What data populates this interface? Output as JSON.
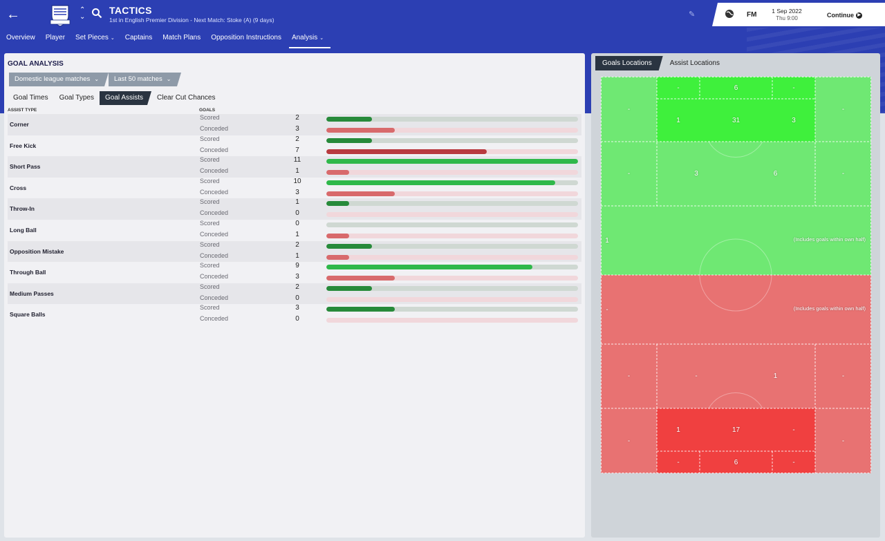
{
  "header": {
    "title": "TACTICS",
    "subtitle": "1st in English Premier Division - Next Match: Stoke (A) (9 days)",
    "brand": "FM",
    "date": "1 Sep 2022",
    "time": "Thu 9:00",
    "continue_label": "Continue",
    "accent_color": "#2c3fb3"
  },
  "nav": [
    {
      "label": "Overview",
      "caret": ""
    },
    {
      "label": "Player",
      "caret": ""
    },
    {
      "label": "Set Pieces",
      "caret": "⌄"
    },
    {
      "label": "Captains",
      "caret": ""
    },
    {
      "label": "Match Plans",
      "caret": ""
    },
    {
      "label": "Opposition Instructions",
      "caret": ""
    },
    {
      "label": "Analysis",
      "caret": "⌄",
      "active": true
    }
  ],
  "goal_analysis": {
    "title": "GOAL ANALYSIS",
    "filter_competition": "Domestic league matches",
    "filter_range": "Last 50 matches",
    "subtabs": [
      "Goal Times",
      "Goal Types",
      "Goal Assists",
      "Clear Cut Chances"
    ],
    "active_subtab": 2,
    "col_assist_type": "ASSIST TYPE",
    "col_goals": "GOALS",
    "scored_label": "Scored",
    "conceded_label": "Conceded",
    "max_value": 11,
    "rows": [
      {
        "type": "Corner",
        "scored": 2,
        "conceded": 3
      },
      {
        "type": "Free Kick",
        "scored": 2,
        "conceded": 7
      },
      {
        "type": "Short Pass",
        "scored": 11,
        "conceded": 1
      },
      {
        "type": "Cross",
        "scored": 10,
        "conceded": 3
      },
      {
        "type": "Throw-In",
        "scored": 1,
        "conceded": 0
      },
      {
        "type": "Long Ball",
        "scored": 0,
        "conceded": 1
      },
      {
        "type": "Opposition Mistake",
        "scored": 2,
        "conceded": 1
      },
      {
        "type": "Through Ball",
        "scored": 9,
        "conceded": 3
      },
      {
        "type": "Medium Passes",
        "scored": 2,
        "conceded": 0
      },
      {
        "type": "Square Balls",
        "scored": 3,
        "conceded": 0
      }
    ]
  },
  "locations": {
    "tabs": [
      "Goals Locations",
      "Assist Locations"
    ],
    "active_tab": 0,
    "note": "(Includes goals within own half)",
    "scored_zones": {
      "box_top": [
        "-",
        "6",
        "-"
      ],
      "box_mid": [
        "1",
        "31",
        "3"
      ],
      "box_sides": [
        "-",
        "-"
      ],
      "zone2": [
        "-",
        "3",
        "6",
        "-"
      ],
      "half": "1"
    },
    "conceded_zones": {
      "half": "-",
      "zone2": [
        "-",
        "-",
        "1",
        "-"
      ],
      "box_mid": [
        "1",
        "17",
        "-"
      ],
      "box_bottom": [
        "-",
        "6",
        "-"
      ],
      "box_sides": [
        "-",
        "-"
      ]
    }
  }
}
